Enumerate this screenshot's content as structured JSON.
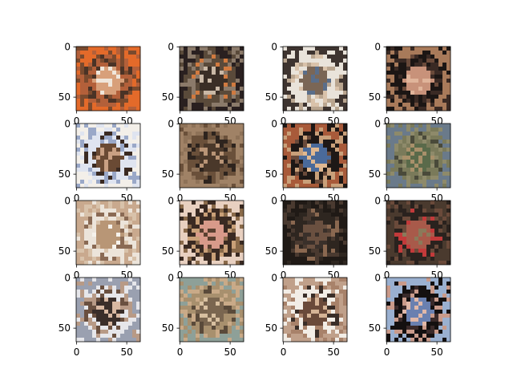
{
  "figure": {
    "rows": 4,
    "cols": 4,
    "axis_ticks": {
      "x_labels": [
        "0",
        "50"
      ],
      "y_labels": [
        "0",
        "50"
      ]
    },
    "panels": [
      {
        "desc": "warm orange-red blurry face",
        "palette": [
          "#b3603a",
          "#7a4a2e",
          "#d8a07a",
          "#f0e6da",
          "#4a3326",
          "#e36a2a"
        ]
      },
      {
        "desc": "dark-haired face with grey surroundings",
        "palette": [
          "#5a4a3a",
          "#8b7a6a",
          "#3a2e26",
          "#c9b8a6",
          "#d07a40",
          "#2a2020"
        ]
      },
      {
        "desc": "light face with curly hair on pale background",
        "palette": [
          "#e9e3da",
          "#b9a58f",
          "#7a6656",
          "#5a6e8a",
          "#d9c2aa",
          "#3e3430"
        ]
      },
      {
        "desc": "dark hair, tan face",
        "palette": [
          "#1c1614",
          "#3a2a24",
          "#c8927a",
          "#e0b49a",
          "#6a4a3a",
          "#a87a5a"
        ]
      },
      {
        "desc": "face with blue-white background",
        "palette": [
          "#dfe4f0",
          "#9aa8c8",
          "#6a4a34",
          "#c9a083",
          "#3a2a22",
          "#f3efe9"
        ]
      },
      {
        "desc": "brown muted face",
        "palette": [
          "#6a503a",
          "#8e7258",
          "#4a382a",
          "#b89476",
          "#2e241e",
          "#a08266"
        ]
      },
      {
        "desc": "dark hair, colorful background",
        "palette": [
          "#1e1816",
          "#c9a07a",
          "#4a6a9a",
          "#e0b890",
          "#6a4a3a",
          "#a85a3a"
        ]
      },
      {
        "desc": "green-tinted noisy face",
        "palette": [
          "#7a7a5a",
          "#8e8a6a",
          "#5a6a4a",
          "#a8906a",
          "#4a4a3a",
          "#6a7a8a"
        ]
      },
      {
        "desc": "pale face with light hair",
        "palette": [
          "#ece4da",
          "#d8c2aa",
          "#b89676",
          "#f6f2ec",
          "#8a6a54",
          "#c9a98e"
        ]
      },
      {
        "desc": "long dark hair, pink tones",
        "palette": [
          "#3a2a22",
          "#8a6a4a",
          "#d89a8a",
          "#5a4030",
          "#c9a078",
          "#e8d0c0"
        ]
      },
      {
        "desc": "very dark brown face",
        "palette": [
          "#2e2620",
          "#4a3a30",
          "#6a5040",
          "#3a302a",
          "#8a6850",
          "#201a16"
        ]
      },
      {
        "desc": "dark face with red accents",
        "palette": [
          "#2a221e",
          "#6a4a3a",
          "#a85a4a",
          "#8a7a5a",
          "#c23a3a",
          "#4a3a2e"
        ]
      },
      {
        "desc": "face on light background, dark lower area",
        "palette": [
          "#e6e6ea",
          "#b89a86",
          "#3a2e2a",
          "#d8b8a2",
          "#6a5040",
          "#9aa0b0"
        ]
      },
      {
        "desc": "blurred mid-tone face",
        "palette": [
          "#a8906e",
          "#c9aa88",
          "#7a6650",
          "#d8c0a0",
          "#5a4a3a",
          "#8ea098"
        ]
      },
      {
        "desc": "face with hat-like top",
        "palette": [
          "#f2ede6",
          "#a8826a",
          "#6a4a3a",
          "#d6b496",
          "#3a2e28",
          "#c0a08a"
        ]
      },
      {
        "desc": "dark hair framing face, blue backdrop",
        "palette": [
          "#141010",
          "#c99a8a",
          "#6a80b0",
          "#e0b8a8",
          "#3a2a2a",
          "#9ab0d0"
        ]
      }
    ]
  }
}
